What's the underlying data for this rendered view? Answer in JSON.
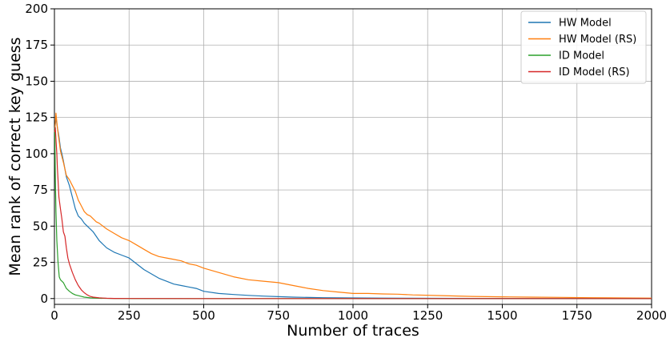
{
  "chart_data": {
    "type": "line",
    "xlabel": "Number of traces",
    "ylabel": "Mean rank of correct key guess",
    "xlim": [
      0,
      2000
    ],
    "ylim": [
      -4,
      200
    ],
    "xticks": [
      0,
      250,
      500,
      750,
      1000,
      1250,
      1500,
      1750,
      2000
    ],
    "yticks": [
      0,
      25,
      50,
      75,
      100,
      125,
      150,
      175,
      200
    ],
    "grid": true,
    "legend_position": "top-right",
    "series": [
      {
        "name": "HW Model",
        "color": "#1f77b4",
        "x": [
          1,
          5,
          10,
          15,
          20,
          25,
          30,
          40,
          50,
          60,
          70,
          80,
          90,
          100,
          110,
          120,
          130,
          140,
          150,
          175,
          200,
          225,
          250,
          275,
          300,
          325,
          350,
          375,
          400,
          425,
          450,
          475,
          500,
          550,
          600,
          650,
          700,
          750,
          800,
          900,
          1000,
          1100,
          1200,
          1300,
          1400,
          1500,
          1600,
          1700,
          1800,
          1900,
          2000
        ],
        "y": [
          117,
          125,
          118,
          112,
          104,
          100,
          95,
          84,
          78,
          70,
          62,
          57,
          55,
          52,
          50,
          48,
          46,
          43,
          40,
          35,
          32,
          30,
          28,
          24,
          20,
          17,
          14,
          12,
          10,
          9,
          8,
          7,
          5,
          3.5,
          2.8,
          2.2,
          1.7,
          1.3,
          1.0,
          0.6,
          0.4,
          0.3,
          0.2,
          0.15,
          0.1,
          0.1,
          0.05,
          0.05,
          0.03,
          0.02,
          0.01
        ]
      },
      {
        "name": "HW Model (RS)",
        "color": "#ff7f0e",
        "x": [
          1,
          5,
          10,
          15,
          20,
          25,
          30,
          40,
          50,
          60,
          70,
          80,
          90,
          100,
          110,
          120,
          130,
          140,
          150,
          175,
          200,
          225,
          250,
          275,
          300,
          325,
          350,
          375,
          400,
          425,
          450,
          475,
          500,
          550,
          600,
          650,
          700,
          750,
          800,
          850,
          900,
          950,
          1000,
          1050,
          1100,
          1150,
          1200,
          1300,
          1400,
          1500,
          1600,
          1700,
          1800,
          1900,
          2000
        ],
        "y": [
          115,
          128,
          118,
          110,
          102,
          98,
          94,
          85,
          82,
          78,
          74,
          68,
          64,
          60,
          58,
          57,
          55,
          53,
          52,
          48,
          45,
          42,
          40,
          37,
          34,
          31,
          29,
          28,
          27,
          26,
          24,
          23,
          21,
          18,
          15,
          13,
          12,
          11,
          9,
          7,
          5.5,
          4.5,
          3.5,
          3.5,
          3.2,
          3.0,
          2.5,
          2.0,
          1.5,
          1.2,
          1.0,
          0.8,
          0.6,
          0.4,
          0.3
        ]
      },
      {
        "name": "ID Model",
        "color": "#2ca02c",
        "x": [
          1,
          3,
          5,
          8,
          12,
          16,
          20,
          25,
          30,
          40,
          50,
          60,
          70,
          80,
          90,
          100,
          120,
          150,
          200,
          300,
          500,
          1000,
          1500,
          2000
        ],
        "y": [
          118,
          85,
          60,
          40,
          25,
          15,
          13,
          12,
          11,
          7,
          5,
          3.5,
          2.5,
          2,
          1.5,
          1,
          0.5,
          0.2,
          0.05,
          0,
          0,
          0,
          0,
          0
        ]
      },
      {
        "name": "ID Model (RS)",
        "color": "#d62728",
        "x": [
          1,
          3,
          5,
          8,
          10,
          12,
          15,
          20,
          25,
          30,
          35,
          40,
          45,
          50,
          60,
          70,
          80,
          90,
          100,
          110,
          120,
          130,
          150,
          175,
          200,
          250,
          300,
          500,
          1000,
          1500,
          2000
        ],
        "y": [
          115,
          118,
          110,
          100,
          90,
          82,
          70,
          62,
          55,
          46,
          43,
          35,
          28,
          24,
          18,
          13,
          9,
          6,
          4,
          2.5,
          1.5,
          1.0,
          0.5,
          0.2,
          0.1,
          0.05,
          0.02,
          0,
          0,
          0,
          0
        ]
      }
    ]
  }
}
